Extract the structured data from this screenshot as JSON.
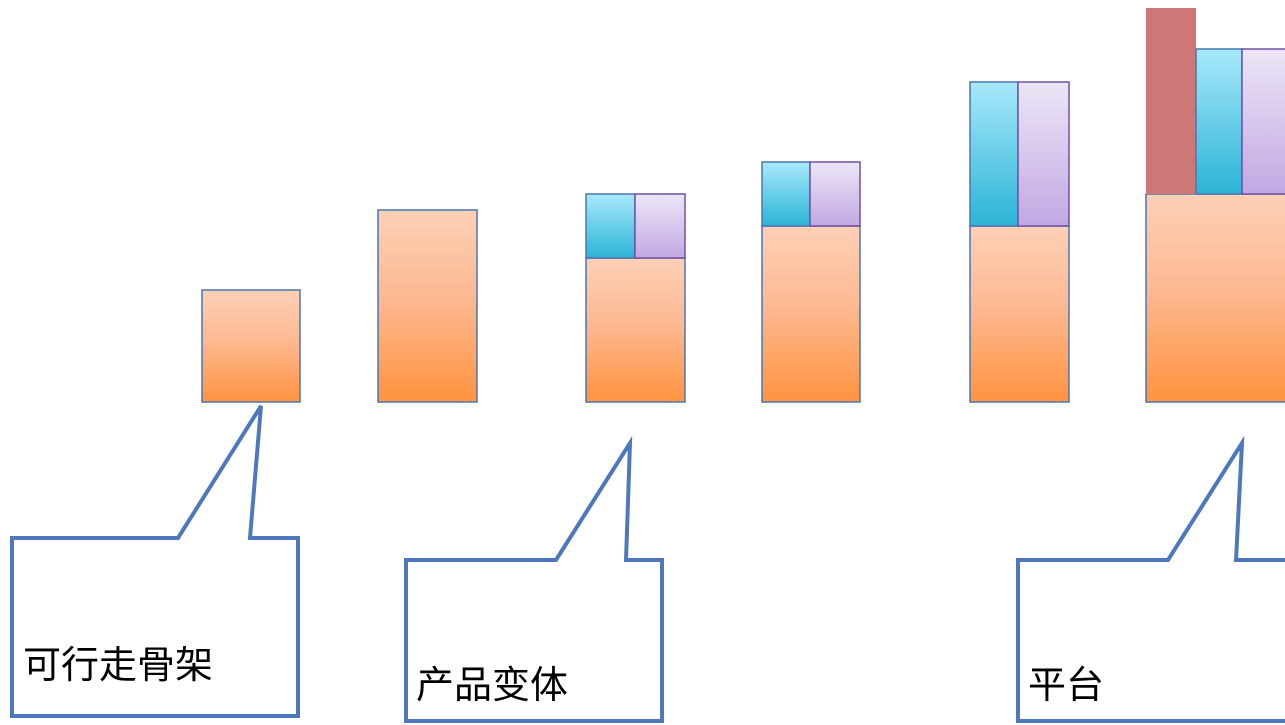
{
  "colors": {
    "base_top": "#FDD0B6",
    "base_bottom": "#FF9340",
    "cyan_top": "#A8E8FA",
    "cyan_bottom": "#2BB4D6",
    "lavender_top": "#EDE6F6",
    "lavender_bottom": "#C1A8E3",
    "rose": "#CD7777",
    "outline_blue": "#4A77B2",
    "outline_purple": "#7050A6",
    "callout_border": "#4F77BE"
  },
  "callouts": [
    {
      "id": "skeleton",
      "label": "可行走骨架"
    },
    {
      "id": "variants",
      "label": "产品变体"
    },
    {
      "id": "platform",
      "label": "平台"
    }
  ]
}
